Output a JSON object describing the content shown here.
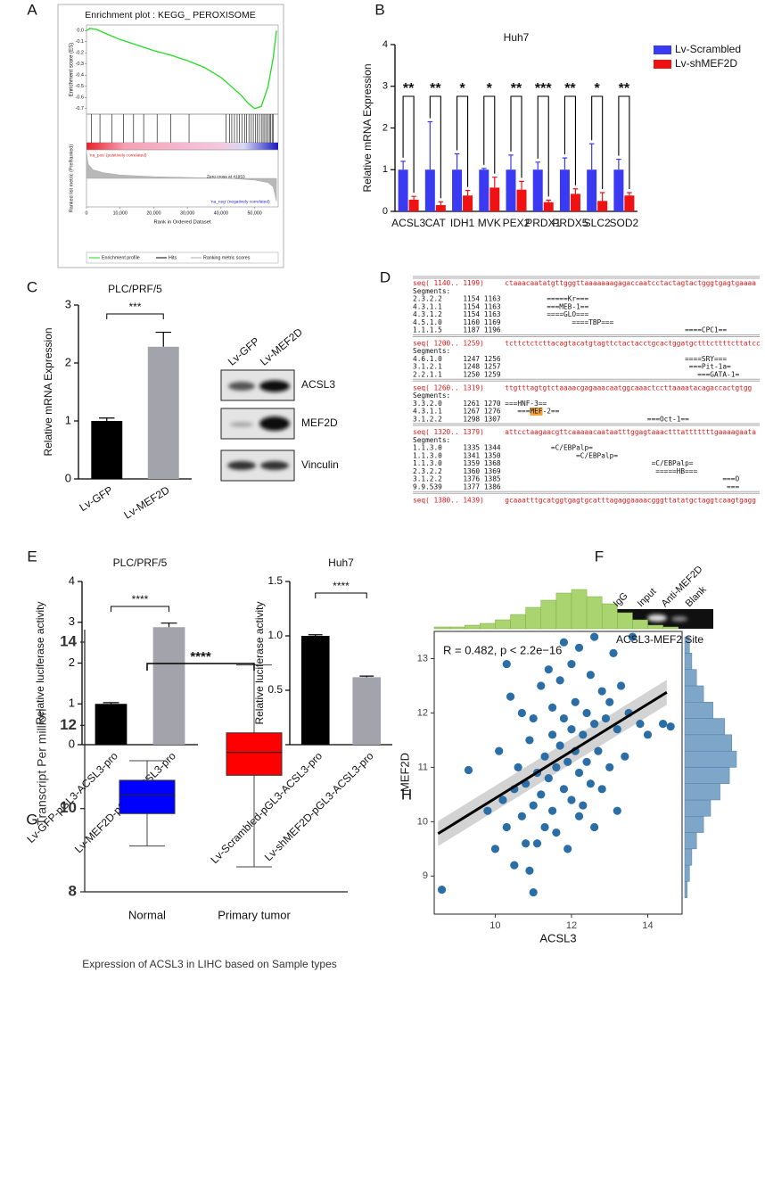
{
  "panel_labels": [
    "A",
    "B",
    "C",
    "D",
    "E",
    "F",
    "G",
    "H"
  ],
  "chart_data": [
    {
      "type": "enrichment",
      "title": "Enrichment plot : KEGG_ PEROXISOME",
      "ylabel": "Enrichment score (ES)",
      "metric_label": "Ranked list metric (PreRanked)",
      "xlabel": "Rank in Ordered Dataset",
      "x": [
        0,
        1000,
        3000,
        6000,
        10000,
        15000,
        20000,
        25000,
        30000,
        35000,
        40000,
        43000,
        46000,
        48000,
        50000,
        52000,
        54000,
        55500,
        56500
      ],
      "values": [
        0,
        0.02,
        0.01,
        -0.03,
        -0.08,
        -0.13,
        -0.18,
        -0.22,
        -0.27,
        -0.33,
        -0.42,
        -0.5,
        -0.58,
        -0.65,
        -0.7,
        -0.68,
        -0.5,
        -0.25,
        0
      ],
      "color": "#22dd22",
      "xlim": [
        0,
        57000
      ],
      "ylim": [
        -0.75,
        0.05
      ],
      "yticks": [
        {
          "value": 0,
          "label": "0.0"
        },
        -0.1,
        -0.2,
        -0.3,
        -0.4,
        -0.5,
        -0.6,
        -0.7
      ],
      "xticks": [
        0,
        {
          "value": 10000,
          "label": "10,000"
        },
        {
          "value": 20000,
          "label": "20,000"
        },
        {
          "value": 30000,
          "label": "30,000"
        },
        {
          "value": 40000,
          "label": "40,000"
        },
        {
          "value": 50000,
          "label": "50,000"
        }
      ],
      "hits": [
        1500,
        4000,
        7500,
        11000,
        14000,
        17000,
        21000,
        25000,
        30500,
        41500,
        42500,
        43200,
        44000,
        44800,
        45500,
        46200,
        47000,
        47600,
        48300,
        49000,
        49600,
        50200,
        50800,
        51400,
        52000,
        52500,
        53000,
        53500,
        54000,
        54400,
        54800,
        55200,
        55600
      ],
      "metric_x": [
        0,
        500,
        2000,
        5000,
        10000,
        20000,
        30000,
        40000,
        41953,
        45000,
        50000,
        54000,
        55500,
        56500
      ],
      "metric_values": [
        0.9,
        0.5,
        0.3,
        0.2,
        0.12,
        0.06,
        0.03,
        0.01,
        0,
        -0.02,
        -0.06,
        -0.15,
        -0.3,
        -0.8
      ],
      "metric_ylim": [
        -1,
        1
      ],
      "pos_label": "'na_pos' (positively correlated)",
      "neg_label": "'na_neg' (negatively correlated)",
      "zero_cross_label": "Zero cross at 41953",
      "legend": [
        "Enrichment profile",
        "Hits",
        "Ranking metric scores"
      ]
    },
    {
      "type": "bar",
      "title": "Huh7",
      "ylabel": "Relative mRNA Expression",
      "categories": [
        "ACSL3",
        "CAT",
        "IDH1",
        "MVK",
        "PEX2",
        "PRDX1",
        "PRDX5",
        "SLC2",
        "SOD2"
      ],
      "series": [
        {
          "name": "Lv-Scrambled",
          "color": "#3a3af2",
          "values": [
            1,
            1,
            1,
            1,
            1,
            1,
            1,
            1,
            1
          ],
          "errors": [
            0.2,
            1.15,
            0.38,
            0.03,
            0.35,
            0.18,
            0.28,
            0.62,
            0.25
          ]
        },
        {
          "name": "Lv-shMEF2D",
          "color": "#f01212",
          "values": [
            0.28,
            0.15,
            0.38,
            0.57,
            0.52,
            0.22,
            0.42,
            0.25,
            0.38
          ],
          "errors": [
            0.08,
            0.08,
            0.12,
            0.25,
            0.2,
            0.05,
            0.12,
            0.2,
            0.07
          ]
        }
      ],
      "significance": [
        "**",
        "**",
        "*",
        "*",
        "**",
        "***",
        "**",
        "*",
        "**"
      ],
      "ylim": [
        0,
        4
      ],
      "yticks": [
        0,
        1,
        2,
        3,
        4
      ],
      "legend": "upper right"
    },
    {
      "type": "bar",
      "title": "PLC/PRF/5",
      "ylabel": "Relative mRNA Expression",
      "categories": [
        "Lv-GFP",
        "Lv-MEF2D"
      ],
      "values": [
        1.0,
        2.28
      ],
      "errors": [
        0.05,
        0.25
      ],
      "colors": [
        "#000000",
        "#a3a3ab"
      ],
      "significance": "***",
      "ylim": [
        0,
        3
      ],
      "yticks": [
        0,
        1,
        2,
        3
      ]
    },
    {
      "type": "bar",
      "title": "PLC/PRF/5",
      "ylabel": "Relative luciferase activity",
      "categories": [
        "Lv-GFP-pGL3-ACSL3-pro",
        "Lv-MEF2D-pGL3-ACSL3-pro"
      ],
      "values": [
        1.0,
        2.88
      ],
      "errors": [
        0.03,
        0.1
      ],
      "colors": [
        "#000000",
        "#a3a3ab"
      ],
      "significance": "****",
      "ylim": [
        0,
        4
      ],
      "yticks": [
        0,
        1,
        2,
        3,
        4
      ]
    },
    {
      "type": "bar",
      "title": "Huh7",
      "ylabel": "Relative luciferase activity",
      "categories": [
        "Lv-Scrambled-pGL3-ACSL3-pro",
        "Lv-shMEF2D-pGL3-ACSL3-pro"
      ],
      "values": [
        1.0,
        0.62
      ],
      "errors": [
        0.01,
        0.01
      ],
      "colors": [
        "#000000",
        "#a3a3ab"
      ],
      "significance": "****",
      "ylim": [
        0,
        1.5
      ],
      "yticks": [
        {
          "value": 0,
          "label": "0.0"
        },
        0.5,
        {
          "value": 1,
          "label": "1.0"
        },
        1.5
      ]
    },
    {
      "type": "box",
      "ylabel": "Transcript Per million",
      "caption": "Expression of ACSL3 in LIHC based on Sample types",
      "categories": [
        "Normal",
        "Primary tumor"
      ],
      "min": [
        9.1,
        8.6
      ],
      "q1": [
        9.88,
        10.8
      ],
      "median": [
        10.32,
        11.35
      ],
      "q3": [
        10.68,
        11.82
      ],
      "max": [
        11.15,
        13.45
      ],
      "colors": [
        "#0000ff",
        "#ff0000"
      ],
      "significance": "****",
      "ylim": [
        8,
        14.3
      ],
      "yticks": [
        8,
        10,
        12,
        14
      ]
    },
    {
      "type": "scatter",
      "xlabel": "ACSL3",
      "ylabel": "MEF2D",
      "annotation": "R = 0.482, p < 2.2e−16",
      "x": [
        8.6,
        9.3,
        9.8,
        10.0,
        10.1,
        10.2,
        10.3,
        10.4,
        10.5,
        10.5,
        10.6,
        10.7,
        10.7,
        10.8,
        10.9,
        10.9,
        11.0,
        11.0,
        11.1,
        11.1,
        11.2,
        11.2,
        11.3,
        11.3,
        11.4,
        11.4,
        11.5,
        11.5,
        11.5,
        11.6,
        11.6,
        11.7,
        11.7,
        11.8,
        11.8,
        11.9,
        11.9,
        12.0,
        12.0,
        12.0,
        12.1,
        12.1,
        12.2,
        12.2,
        12.3,
        12.3,
        12.4,
        12.4,
        12.5,
        12.5,
        12.6,
        12.6,
        12.7,
        12.8,
        12.8,
        12.9,
        13.0,
        13.0,
        13.1,
        13.2,
        13.3,
        13.4,
        13.5,
        13.6,
        13.8,
        14.0,
        14.4,
        14.6,
        11.0,
        10.3,
        12.6,
        13.2,
        11.8,
        10.8,
        12.2
      ],
      "y": [
        8.75,
        10.95,
        10.2,
        9.5,
        11.3,
        10.4,
        9.9,
        12.3,
        10.6,
        9.2,
        11.0,
        10.1,
        12.0,
        10.7,
        9.1,
        11.5,
        10.3,
        11.9,
        9.6,
        10.9,
        12.5,
        10.5,
        11.2,
        9.9,
        12.8,
        10.8,
        11.6,
        10.2,
        12.1,
        11.0,
        9.8,
        11.4,
        12.6,
        10.6,
        11.9,
        11.1,
        9.5,
        11.7,
        12.9,
        10.4,
        11.3,
        12.2,
        10.9,
        13.2,
        11.6,
        10.3,
        12.0,
        11.1,
        12.7,
        10.7,
        11.8,
        13.4,
        11.3,
        12.4,
        10.6,
        11.9,
        12.2,
        11.0,
        13.1,
        11.7,
        12.5,
        11.2,
        12.0,
        13.4,
        11.8,
        11.6,
        11.8,
        11.75,
        8.7,
        12.9,
        9.9,
        10.2,
        13.3,
        9.6,
        10.1
      ],
      "color": "#2b6ea6",
      "fit": {
        "x": [
          8.5,
          14.5
        ],
        "y": [
          9.78,
          12.38
        ],
        "lower": [
          9.55,
          12.15
        ],
        "upper": [
          10.01,
          12.61
        ]
      },
      "xlim": [
        8.4,
        14.9
      ],
      "ylim": [
        8.3,
        13.5
      ],
      "xticks": [
        10,
        12,
        14
      ],
      "yticks": [
        9,
        10,
        11,
        12,
        13
      ],
      "x_hist": {
        "bins": [
          8.4,
          8.8,
          9.2,
          9.6,
          10.0,
          10.4,
          10.8,
          11.2,
          11.6,
          12.0,
          12.4,
          12.8,
          13.2,
          13.6,
          14.0,
          14.4,
          14.8
        ],
        "counts": [
          1,
          1,
          2,
          3,
          5,
          8,
          12,
          16,
          20,
          22,
          18,
          14,
          9,
          5,
          2,
          1
        ],
        "color": "#a9d46f"
      },
      "y_hist": {
        "bins": [
          8.6,
          8.9,
          9.2,
          9.5,
          9.8,
          10.1,
          10.4,
          10.7,
          11.0,
          11.3,
          11.6,
          11.9,
          12.2,
          12.5,
          12.8,
          13.1,
          13.4
        ],
        "counts": [
          1,
          2,
          3,
          5,
          8,
          11,
          15,
          19,
          22,
          20,
          17,
          12,
          8,
          5,
          3,
          2
        ],
        "color": "#7ea6c8"
      }
    }
  ],
  "blot": {
    "lanes": [
      "Lv-GFP",
      "Lv-MEF2D"
    ],
    "proteins": [
      "ACSL3",
      "MEF2D",
      "Vinculin"
    ]
  },
  "gel": {
    "lanes": [
      "IgG",
      "Input",
      "Anti-MEF2D",
      "Blank"
    ],
    "caption": "ACSL3-MEF2 Site"
  },
  "sequence": {
    "segments_label": "Segments:",
    "blocks": [
      {
        "header": "seq( 1140.. 1199)",
        "sequence": "ctaaacaatatgttgggttaaaaaaagagaccaatcctactagtactgggtgagtgaaaa",
        "segments": [
          "2.3.2.2     1154 1163           =====Kr===",
          "4.3.1.1     1154 1163           ===MEB-1==",
          "4.3.1.2     1154 1163           ====GLO===",
          "4.5.1.0     1160 1169                 ====TBP===",
          "1.1.1.5     1187 1196                                            ====CPC1=="
        ]
      },
      {
        "header": "seq( 1200.. 1259)",
        "sequence": "tcttctctcttacagtacatgtagttctactacctgcactggatgctttcttttcttatcc",
        "segments": [
          "4.6.1.0     1247 1256                                            ====SRY===",
          "3.1.2.1     1248 1257                                             ===Pit-1a=",
          "2.2.1.1     1250 1259                                               ===GATA-1="
        ]
      },
      {
        "header": "seq( 1260.. 1319)",
        "sequence": "ttgtttagtgtctaaaacgagaaacaatggcaaactccttaaaatacagaccactgtgg",
        "segments": [
          "3.3.2.0     1261 1270 ===HNF-3==",
          "4.3.1.1     1267 1276    ===MEF-2==",
          "3.1.2.2     1298 1307                                   ===Oct-1=="
        ]
      },
      {
        "header": "seq( 1320.. 1379)",
        "sequence": "attcctaagaacgttcaaaaacaataatttggagtaaactttatttttttgaaaagaata",
        "segments": [
          "1.1.3.0     1335 1344            =C/EBPalp=",
          "1.1.3.0     1341 1350                  =C/EBPalp=",
          "1.1.3.0     1359 1368                                    =C/EBPalp=",
          "2.3.2.2     1360 1369                                     =====HB===",
          "3.1.2.2     1376 1385                                                     ===O",
          "9.9.539     1377 1386                                                      ==="
        ]
      },
      {
        "header": "seq( 1380.. 1439)",
        "sequence": "gcaaatttgcatggtgagtgcatttagaggaaaacgggttatatgctaggtcaagtgagg",
        "segments": []
      }
    ]
  }
}
